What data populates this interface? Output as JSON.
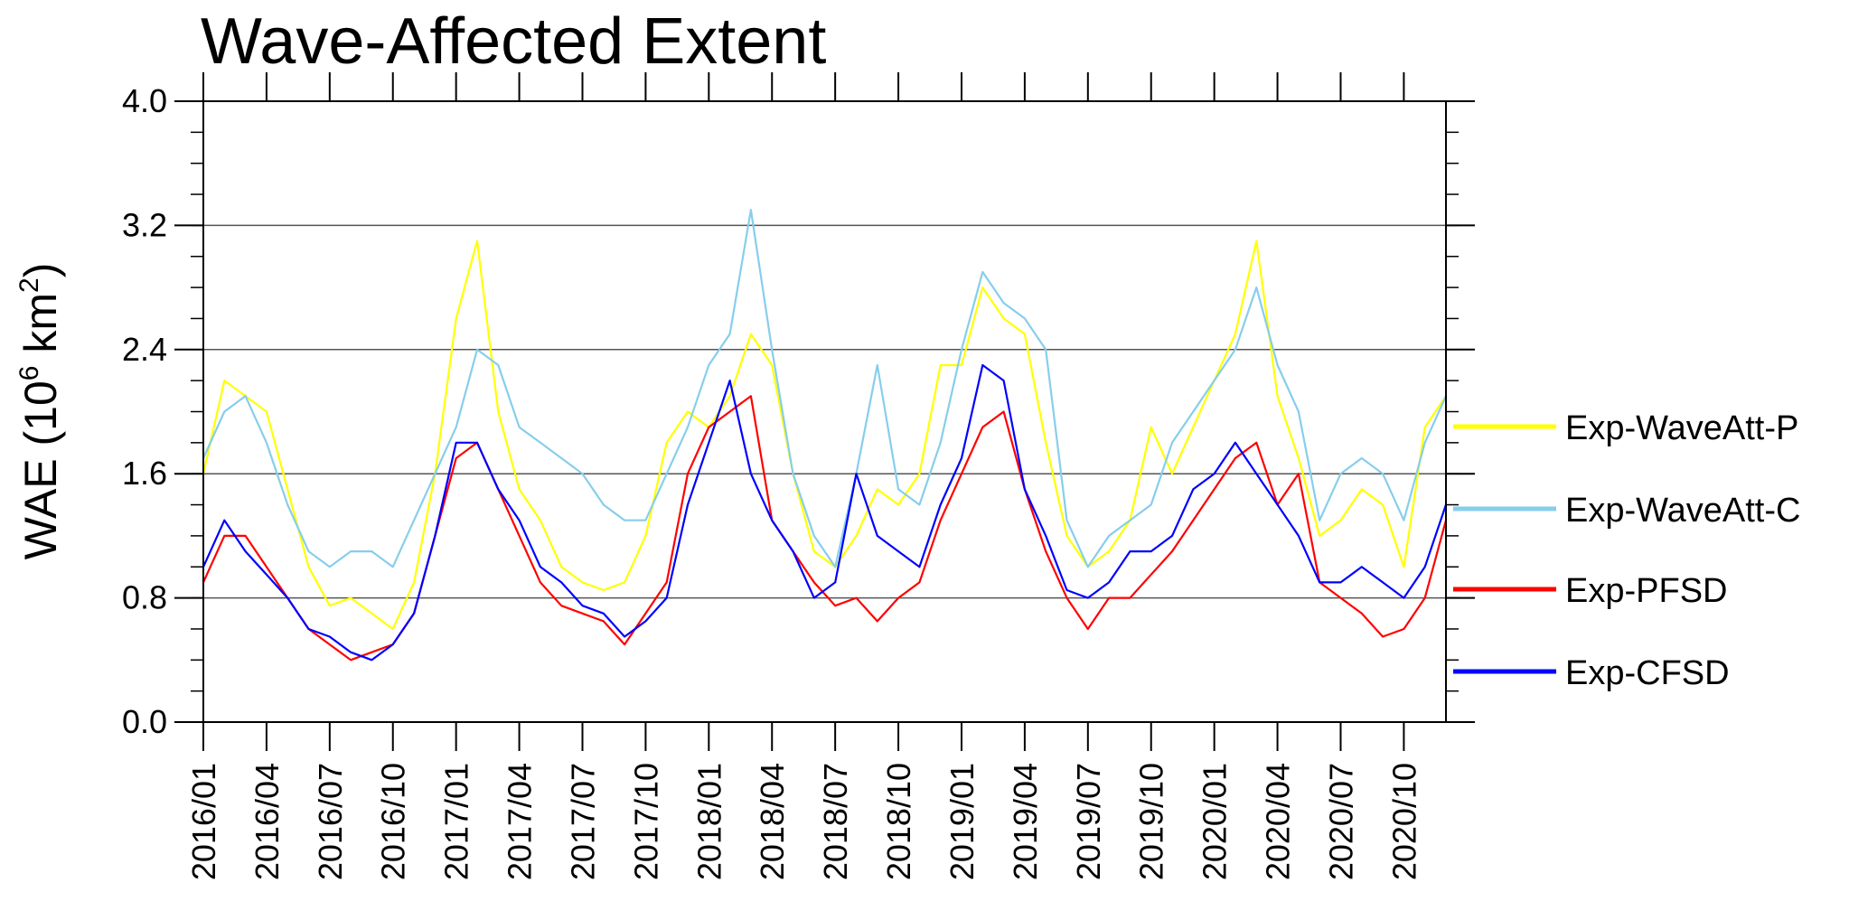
{
  "chart_data": {
    "type": "line",
    "title": "Wave-Affected Extent",
    "ylabel_parts": {
      "pre": "WAE (10",
      "exp1": "6",
      "mid": " km",
      "exp2": "2",
      "post": ")"
    },
    "ylim": [
      0.0,
      4.0
    ],
    "yticks": [
      "0.0",
      "0.8",
      "1.6",
      "2.4",
      "3.2",
      "4.0"
    ],
    "grid_y": [
      0.8,
      1.6,
      2.4,
      3.2
    ],
    "xlim": [
      "2016/01",
      "2020/12"
    ],
    "xticks": [
      "2016/01",
      "2016/04",
      "2016/07",
      "2016/10",
      "2017/01",
      "2017/04",
      "2017/07",
      "2017/10",
      "2018/01",
      "2018/04",
      "2018/07",
      "2018/10",
      "2019/01",
      "2019/04",
      "2019/07",
      "2019/10",
      "2020/01",
      "2020/04",
      "2020/07",
      "2020/10"
    ],
    "legend_position": "right",
    "x": [
      "2016/01",
      "2016/02",
      "2016/03",
      "2016/04",
      "2016/05",
      "2016/06",
      "2016/07",
      "2016/08",
      "2016/09",
      "2016/10",
      "2016/11",
      "2016/12",
      "2017/01",
      "2017/02",
      "2017/03",
      "2017/04",
      "2017/05",
      "2017/06",
      "2017/07",
      "2017/08",
      "2017/09",
      "2017/10",
      "2017/11",
      "2017/12",
      "2018/01",
      "2018/02",
      "2018/03",
      "2018/04",
      "2018/05",
      "2018/06",
      "2018/07",
      "2018/08",
      "2018/09",
      "2018/10",
      "2018/11",
      "2018/12",
      "2019/01",
      "2019/02",
      "2019/03",
      "2019/04",
      "2019/05",
      "2019/06",
      "2019/07",
      "2019/08",
      "2019/09",
      "2019/10",
      "2019/11",
      "2019/12",
      "2020/01",
      "2020/02",
      "2020/03",
      "2020/04",
      "2020/05",
      "2020/06",
      "2020/07",
      "2020/08",
      "2020/09",
      "2020/10",
      "2020/11",
      "2020/12"
    ],
    "series": [
      {
        "name": "Exp-WaveAtt-P",
        "color": "#ffff00",
        "values": [
          1.6,
          2.2,
          2.1,
          2.0,
          1.5,
          1.0,
          0.75,
          0.8,
          0.7,
          0.6,
          0.9,
          1.6,
          2.6,
          3.1,
          2.0,
          1.5,
          1.3,
          1.0,
          0.9,
          0.85,
          0.9,
          1.2,
          1.8,
          2.0,
          1.9,
          2.1,
          2.5,
          2.3,
          1.6,
          1.1,
          1.0,
          1.2,
          1.5,
          1.4,
          1.6,
          2.3,
          2.3,
          2.8,
          2.6,
          2.5,
          1.8,
          1.2,
          1.0,
          1.1,
          1.3,
          1.9,
          1.6,
          1.9,
          2.2,
          2.5,
          3.1,
          2.1,
          1.7,
          1.2,
          1.3,
          1.5,
          1.4,
          1.0,
          1.9,
          2.1
        ]
      },
      {
        "name": "Exp-WaveAtt-C",
        "color": "#87ceeb",
        "values": [
          1.7,
          2.0,
          2.1,
          1.8,
          1.4,
          1.1,
          1.0,
          1.1,
          1.1,
          1.0,
          1.3,
          1.6,
          1.9,
          2.4,
          2.3,
          1.9,
          1.8,
          1.7,
          1.6,
          1.4,
          1.3,
          1.3,
          1.6,
          1.9,
          2.3,
          2.5,
          3.3,
          2.4,
          1.6,
          1.2,
          1.0,
          1.6,
          2.3,
          1.5,
          1.4,
          1.8,
          2.4,
          2.9,
          2.7,
          2.6,
          2.4,
          1.3,
          1.0,
          1.2,
          1.3,
          1.4,
          1.8,
          2.0,
          2.2,
          2.4,
          2.8,
          2.3,
          2.0,
          1.3,
          1.6,
          1.7,
          1.6,
          1.3,
          1.8,
          2.1
        ]
      },
      {
        "name": "Exp-PFSD",
        "color": "#ff0000",
        "values": [
          0.9,
          1.2,
          1.2,
          1.0,
          0.8,
          0.6,
          0.5,
          0.4,
          0.45,
          0.5,
          0.7,
          1.2,
          1.7,
          1.8,
          1.5,
          1.2,
          0.9,
          0.75,
          0.7,
          0.65,
          0.5,
          0.7,
          0.9,
          1.6,
          1.9,
          2.0,
          2.1,
          1.3,
          1.1,
          0.9,
          0.75,
          0.8,
          0.65,
          0.8,
          0.9,
          1.3,
          1.6,
          1.9,
          2.0,
          1.5,
          1.1,
          0.8,
          0.6,
          0.8,
          0.8,
          0.95,
          1.1,
          1.3,
          1.5,
          1.7,
          1.8,
          1.4,
          1.6,
          0.9,
          0.8,
          0.7,
          0.55,
          0.6,
          0.8,
          1.3
        ]
      },
      {
        "name": "Exp-CFSD",
        "color": "#0000ff",
        "values": [
          1.0,
          1.3,
          1.1,
          0.95,
          0.8,
          0.6,
          0.55,
          0.45,
          0.4,
          0.5,
          0.7,
          1.2,
          1.8,
          1.8,
          1.5,
          1.3,
          1.0,
          0.9,
          0.75,
          0.7,
          0.55,
          0.65,
          0.8,
          1.4,
          1.8,
          2.2,
          1.6,
          1.3,
          1.1,
          0.8,
          0.9,
          1.6,
          1.2,
          1.1,
          1.0,
          1.4,
          1.7,
          2.3,
          2.2,
          1.5,
          1.2,
          0.85,
          0.8,
          0.9,
          1.1,
          1.1,
          1.2,
          1.5,
          1.6,
          1.8,
          1.6,
          1.4,
          1.2,
          0.9,
          0.9,
          1.0,
          0.9,
          0.8,
          1.0,
          1.4
        ]
      }
    ]
  }
}
